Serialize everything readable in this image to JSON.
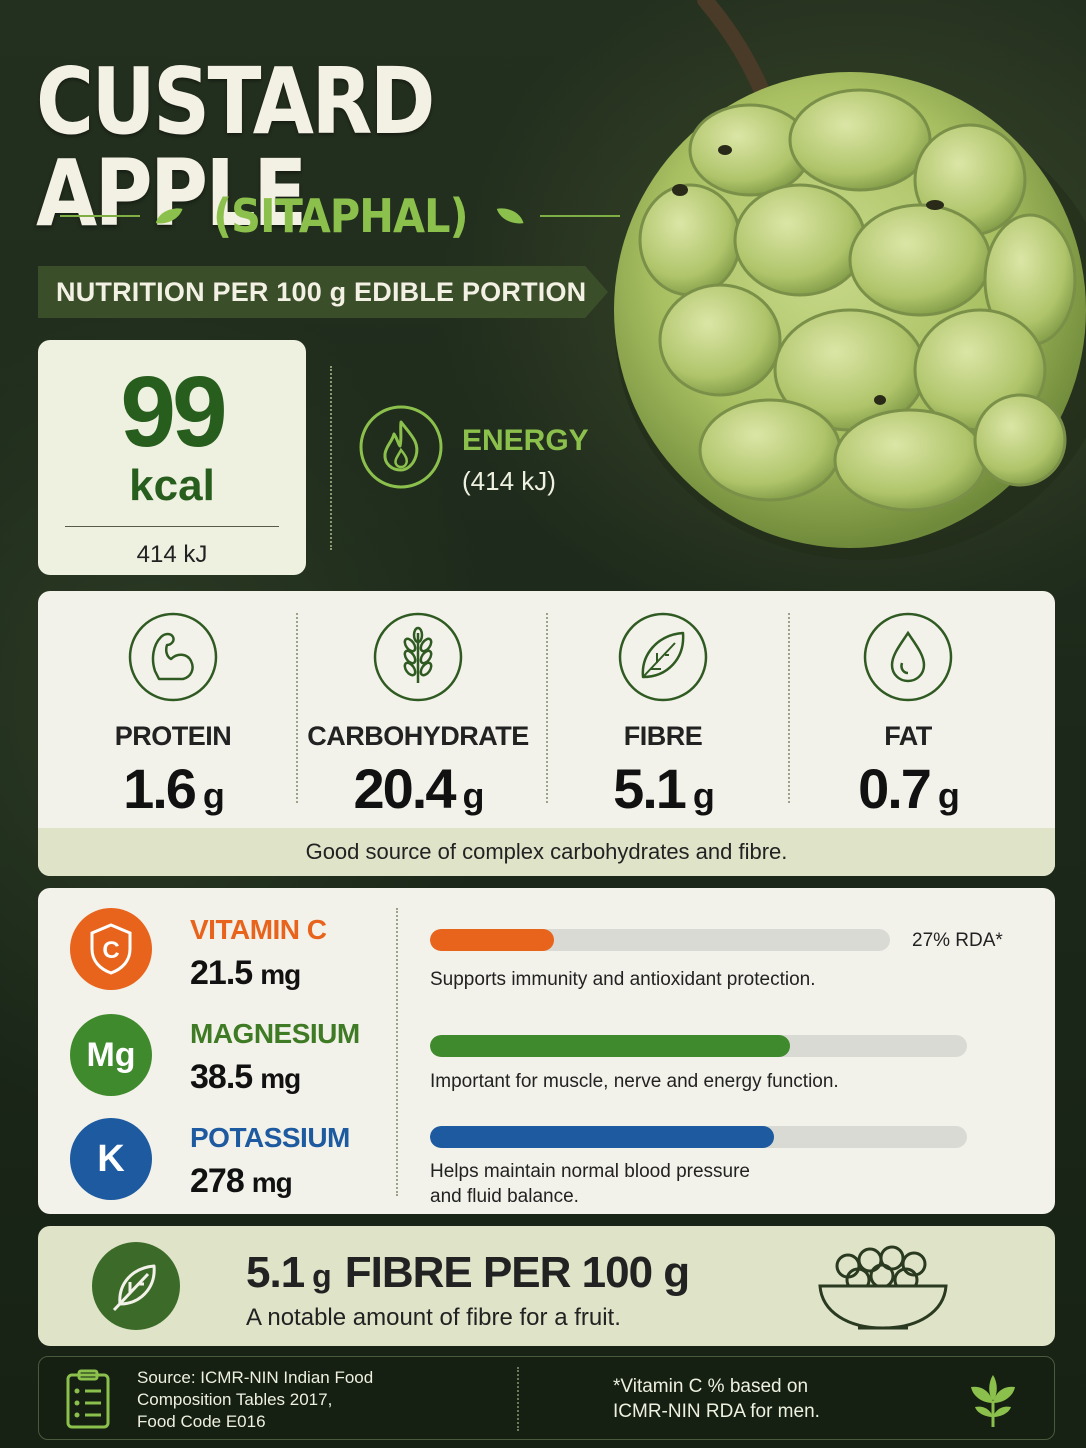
{
  "title": "CUSTARD APPLE",
  "subtitle": "(SITAPHAL)",
  "banner": "NUTRITION PER 100 g EDIBLE PORTION",
  "energy": {
    "value": "99",
    "unit": "kcal",
    "kj": "414 kJ",
    "label": "ENERGY",
    "kj_paren": "(414 kJ)",
    "icon": "flame-icon"
  },
  "macros": [
    {
      "label": "PROTEIN",
      "value": "1.6",
      "unit": "g",
      "icon": "muscle-arm-icon"
    },
    {
      "label": "CARBOHYDRATE",
      "value": "20.4",
      "unit": "g",
      "icon": "wheat-icon"
    },
    {
      "label": "FIBRE",
      "value": "5.1",
      "unit": "g",
      "icon": "leaf-icon"
    },
    {
      "label": "FAT",
      "value": "0.7",
      "unit": "g",
      "icon": "droplet-icon"
    }
  ],
  "macro_note": "Good source of complex carbohydrates and fibre.",
  "minerals": [
    {
      "symbol": "C",
      "name": "VITAMIN C",
      "value": "21.5",
      "unit": "mg",
      "color": "#e8641c",
      "bar_fill": 0.27,
      "rda": "27% RDA*",
      "desc": "Supports immunity and antioxidant protection."
    },
    {
      "symbol": "Mg",
      "name": "MAGNESIUM",
      "value": "38.5",
      "unit": "mg",
      "color": "#3f8a2c",
      "bar_fill": 0.67,
      "desc": "Important for muscle, nerve and energy function."
    },
    {
      "symbol": "K",
      "name": "POTASSIUM",
      "value": "278",
      "unit": "mg",
      "color": "#1d5aa0",
      "bar_fill": 0.64,
      "desc": "Helps maintain normal blood pressure",
      "desc2": "and fluid balance."
    }
  ],
  "fibre_banner": {
    "value": "5.1",
    "unit": "g",
    "text": "FIBRE PER 100 g",
    "sub": "A notable amount of fibre for a fruit."
  },
  "footer": {
    "source_1": "Source: ICMR-NIN Indian Food",
    "source_2": "Composition Tables 2017,",
    "source_3": "Food Code E016",
    "note_1": "*Vitamin C % based on",
    "note_2": "ICMR-NIN RDA for men."
  },
  "colors": {
    "accent_green": "#8cc04c",
    "dark_green": "#275e1d",
    "orange": "#e8641c",
    "blue": "#1d5aa0"
  }
}
